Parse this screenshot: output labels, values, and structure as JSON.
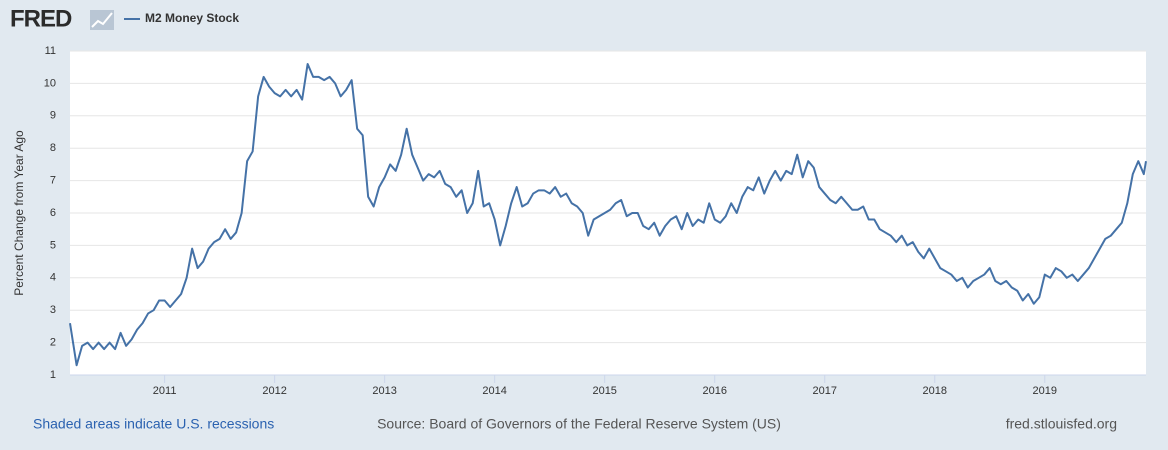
{
  "header": {
    "logo": "FRED"
  },
  "footer": {
    "left": "Shaded areas indicate U.S. recessions",
    "center": "Source: Board of Governors of the Federal Reserve System (US)",
    "right": "fred.stlouisfed.org"
  },
  "chart_data": {
    "type": "line",
    "ylabel": "Percent Change from Year Ago",
    "xlim": [
      2010.14,
      2019.92
    ],
    "xticks": [
      2011,
      2012,
      2013,
      2014,
      2015,
      2016,
      2017,
      2018,
      2019
    ],
    "ylim": [
      1,
      11
    ],
    "yticks": [
      1,
      2,
      3,
      4,
      5,
      6,
      7,
      8,
      9,
      10,
      11
    ],
    "grid": true,
    "x": [
      2010.14,
      2010.2,
      2010.25,
      2010.3,
      2010.35,
      2010.4,
      2010.45,
      2010.5,
      2010.55,
      2010.6,
      2010.65,
      2010.7,
      2010.75,
      2010.8,
      2010.85,
      2010.9,
      2010.95,
      2011.0,
      2011.05,
      2011.1,
      2011.15,
      2011.2,
      2011.25,
      2011.3,
      2011.35,
      2011.4,
      2011.45,
      2011.5,
      2011.55,
      2011.6,
      2011.65,
      2011.7,
      2011.75,
      2011.8,
      2011.85,
      2011.9,
      2011.95,
      2012.0,
      2012.05,
      2012.1,
      2012.15,
      2012.2,
      2012.25,
      2012.3,
      2012.35,
      2012.4,
      2012.45,
      2012.5,
      2012.55,
      2012.6,
      2012.65,
      2012.7,
      2012.75,
      2012.8,
      2012.85,
      2012.9,
      2012.95,
      2013.0,
      2013.05,
      2013.1,
      2013.15,
      2013.2,
      2013.25,
      2013.3,
      2013.35,
      2013.4,
      2013.45,
      2013.5,
      2013.55,
      2013.6,
      2013.65,
      2013.7,
      2013.75,
      2013.8,
      2013.85,
      2013.9,
      2013.95,
      2014.0,
      2014.05,
      2014.1,
      2014.15,
      2014.2,
      2014.25,
      2014.3,
      2014.35,
      2014.4,
      2014.45,
      2014.5,
      2014.55,
      2014.6,
      2014.65,
      2014.7,
      2014.75,
      2014.8,
      2014.85,
      2014.9,
      2014.95,
      2015.0,
      2015.05,
      2015.1,
      2015.15,
      2015.2,
      2015.25,
      2015.3,
      2015.35,
      2015.4,
      2015.45,
      2015.5,
      2015.55,
      2015.6,
      2015.65,
      2015.7,
      2015.75,
      2015.8,
      2015.85,
      2015.9,
      2015.95,
      2016.0,
      2016.05,
      2016.1,
      2016.15,
      2016.2,
      2016.25,
      2016.3,
      2016.35,
      2016.4,
      2016.45,
      2016.5,
      2016.55,
      2016.6,
      2016.65,
      2016.7,
      2016.75,
      2016.8,
      2016.85,
      2016.9,
      2016.95,
      2017.0,
      2017.05,
      2017.1,
      2017.15,
      2017.2,
      2017.25,
      2017.3,
      2017.35,
      2017.4,
      2017.45,
      2017.5,
      2017.55,
      2017.6,
      2017.65,
      2017.7,
      2017.75,
      2017.8,
      2017.85,
      2017.9,
      2017.95,
      2018.0,
      2018.05,
      2018.1,
      2018.15,
      2018.2,
      2018.25,
      2018.3,
      2018.35,
      2018.4,
      2018.45,
      2018.5,
      2018.55,
      2018.6,
      2018.65,
      2018.7,
      2018.75,
      2018.8,
      2018.85,
      2018.9,
      2018.95,
      2019.0,
      2019.05,
      2019.1,
      2019.15,
      2019.2,
      2019.25,
      2019.3,
      2019.35,
      2019.4,
      2019.45,
      2019.5,
      2019.55,
      2019.6,
      2019.65,
      2019.7,
      2019.75,
      2019.8,
      2019.85,
      2019.9,
      2019.92
    ],
    "series": [
      {
        "name": "M2 Money Stock",
        "color": "#4572a7",
        "values": [
          2.6,
          1.3,
          1.9,
          2.0,
          1.8,
          2.0,
          1.8,
          2.0,
          1.8,
          2.3,
          1.9,
          2.1,
          2.4,
          2.6,
          2.9,
          3.0,
          3.3,
          3.3,
          3.1,
          3.3,
          3.5,
          4.0,
          4.9,
          4.3,
          4.5,
          4.9,
          5.1,
          5.2,
          5.5,
          5.2,
          5.4,
          6.0,
          7.6,
          7.9,
          9.6,
          10.2,
          9.9,
          9.7,
          9.6,
          9.8,
          9.6,
          9.8,
          9.5,
          10.6,
          10.2,
          10.2,
          10.1,
          10.2,
          10.0,
          9.6,
          9.8,
          10.1,
          8.6,
          8.4,
          6.5,
          6.2,
          6.8,
          7.1,
          7.5,
          7.3,
          7.8,
          8.6,
          7.8,
          7.4,
          7.0,
          7.2,
          7.1,
          7.3,
          6.9,
          6.8,
          6.5,
          6.7,
          6.0,
          6.3,
          7.3,
          6.2,
          6.3,
          5.8,
          5.0,
          5.6,
          6.3,
          6.8,
          6.2,
          6.3,
          6.6,
          6.7,
          6.7,
          6.6,
          6.8,
          6.5,
          6.6,
          6.3,
          6.2,
          6.0,
          5.3,
          5.8,
          5.9,
          6.0,
          6.1,
          6.3,
          6.4,
          5.9,
          6.0,
          6.0,
          5.6,
          5.5,
          5.7,
          5.3,
          5.6,
          5.8,
          5.9,
          5.5,
          6.0,
          5.6,
          5.8,
          5.7,
          6.3,
          5.8,
          5.7,
          5.9,
          6.3,
          6.0,
          6.5,
          6.8,
          6.7,
          7.1,
          6.6,
          7.0,
          7.3,
          7.0,
          7.3,
          7.2,
          7.8,
          7.1,
          7.6,
          7.4,
          6.8,
          6.6,
          6.4,
          6.3,
          6.5,
          6.3,
          6.1,
          6.1,
          6.2,
          5.8,
          5.8,
          5.5,
          5.4,
          5.3,
          5.1,
          5.3,
          5.0,
          5.1,
          4.8,
          4.6,
          4.9,
          4.6,
          4.3,
          4.2,
          4.1,
          3.9,
          4.0,
          3.7,
          3.9,
          4.0,
          4.1,
          4.3,
          3.9,
          3.8,
          3.9,
          3.7,
          3.6,
          3.3,
          3.5,
          3.2,
          3.4,
          4.1,
          4.0,
          4.3,
          4.2,
          4.0,
          4.1,
          3.9,
          4.1,
          4.3,
          4.6,
          4.9,
          5.2,
          5.3,
          5.5,
          5.7,
          6.3,
          7.2,
          7.6,
          7.2,
          7.6
        ]
      }
    ]
  }
}
